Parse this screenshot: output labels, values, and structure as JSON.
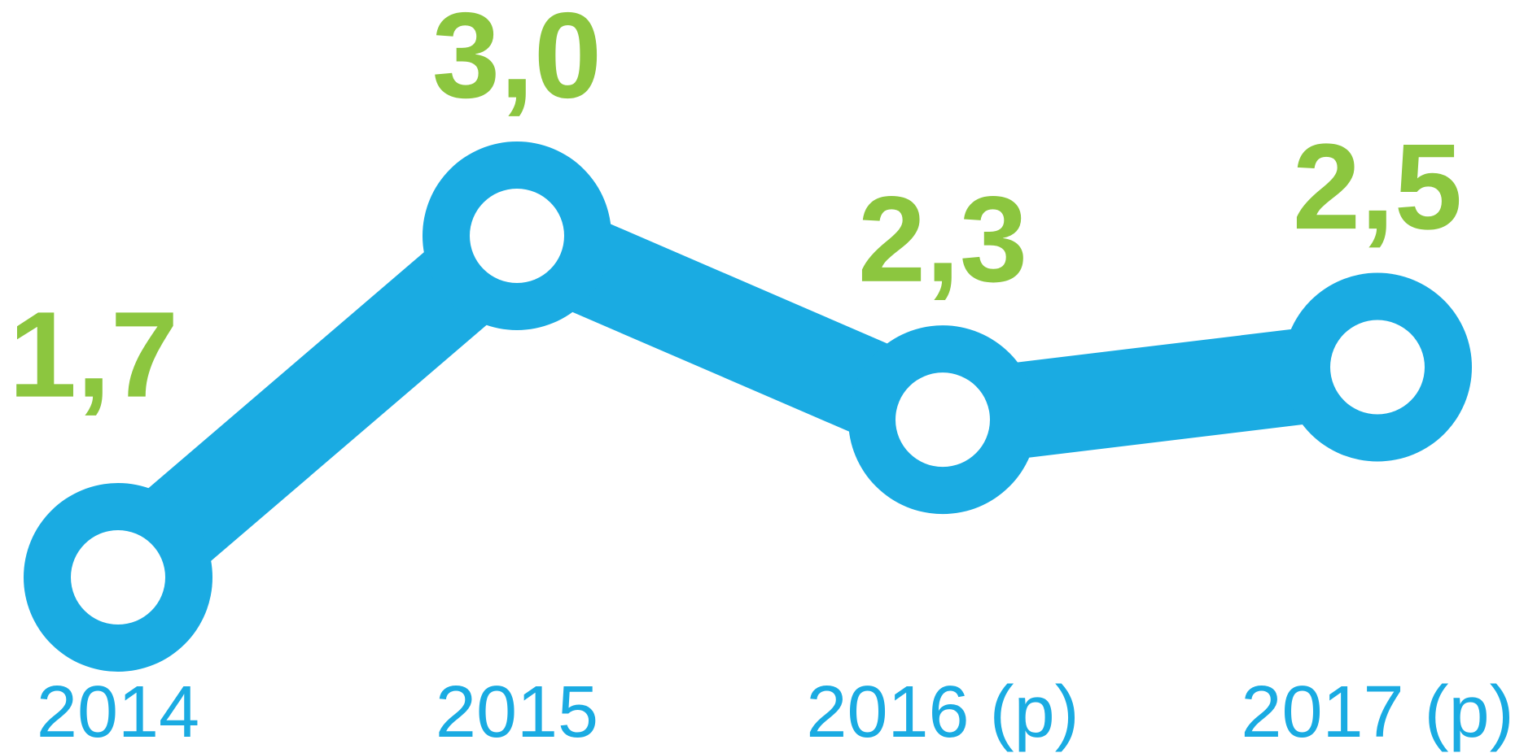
{
  "chart_data": {
    "type": "line",
    "categories": [
      "2014",
      "2015",
      "2016 (p)",
      "2017 (p)"
    ],
    "series": [
      {
        "name": null,
        "color": "#1aabe2",
        "values": [
          1.7,
          3.0,
          2.3,
          2.5
        ],
        "value_labels": [
          "1,7",
          "3,0",
          "2,3",
          "2,5"
        ]
      }
    ],
    "label_color": "#8cc63f"
  }
}
